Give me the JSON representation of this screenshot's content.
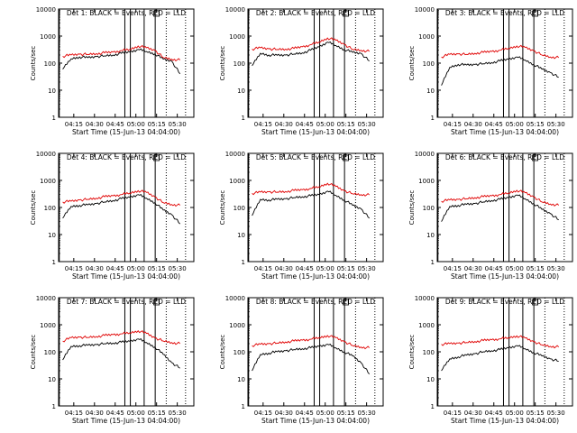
{
  "colors": {
    "events": "#000000",
    "lld": "#e00000",
    "frame": "#000000"
  },
  "chart_data": [
    {
      "type": "line",
      "title": "Det 1: BLACK = Events, RED = LLD",
      "ylabel": "Counts/sec",
      "xlabel": "Start Time (15-Jun-13 04:04:00)",
      "x_ticks": [
        "04:15",
        "04:30",
        "04:45",
        "05:00",
        "05:15",
        "05:30"
      ],
      "y_ticks": [
        "1",
        "10",
        "100",
        "1000",
        "10000"
      ],
      "ylim": [
        1,
        10000
      ],
      "yscale": "log",
      "series": [
        {
          "values": [
            60,
            145,
            170,
            160,
            175,
            185,
            200,
            230,
            260,
            320,
            270,
            220,
            140,
            120,
            40
          ]
        },
        {
          "values": [
            180,
            200,
            215,
            210,
            225,
            240,
            255,
            290,
            320,
            430,
            370,
            300,
            160,
            140,
            130
          ]
        }
      ]
    },
    {
      "type": "line",
      "title": "Det 2: BLACK = Events, RED = LLD",
      "ylabel": "Counts/sec",
      "xlabel": "Start Time (15-Jun-13 04:04:00)",
      "x_ticks": [
        "04:15",
        "04:30",
        "04:45",
        "05:00",
        "05:15",
        "05:30"
      ],
      "y_ticks": [
        "1",
        "10",
        "100",
        "1000",
        "10000"
      ],
      "ylim": [
        1,
        10000
      ],
      "yscale": "log",
      "series": [
        {
          "values": [
            80,
            230,
            200,
            195,
            200,
            215,
            240,
            300,
            400,
            600,
            450,
            320,
            250,
            230,
            120
          ]
        },
        {
          "values": [
            330,
            370,
            340,
            320,
            330,
            350,
            400,
            480,
            600,
            850,
            700,
            500,
            320,
            300,
            270
          ]
        }
      ]
    },
    {
      "type": "line",
      "title": "Det 3: BLACK = Events, RED = LLD",
      "ylabel": "Counts/sec",
      "xlabel": "Start Time (15-Jun-13 04:04:00)",
      "x_ticks": [
        "04:15",
        "04:30",
        "04:45",
        "05:00",
        "05:15",
        "05:30"
      ],
      "y_ticks": [
        "1",
        "10",
        "100",
        "1000",
        "10000"
      ],
      "ylim": [
        1,
        10000
      ],
      "yscale": "log",
      "series": [
        {
          "values": [
            15,
            70,
            90,
            85,
            90,
            95,
            105,
            120,
            140,
            170,
            130,
            90,
            60,
            45,
            30
          ]
        },
        {
          "values": [
            170,
            210,
            220,
            210,
            230,
            250,
            270,
            300,
            350,
            430,
            380,
            290,
            200,
            170,
            160
          ]
        }
      ]
    },
    {
      "type": "line",
      "title": "Det 4: BLACK = Events, RED = LLD",
      "ylabel": "Counts/sec",
      "xlabel": "Start Time (15-Jun-13 04:04:00)",
      "x_ticks": [
        "04:15",
        "04:30",
        "04:45",
        "05:00",
        "05:15",
        "05:30"
      ],
      "y_ticks": [
        "1",
        "10",
        "100",
        "1000",
        "10000"
      ],
      "ylim": [
        1,
        10000
      ],
      "yscale": "log",
      "series": [
        {
          "values": [
            40,
            110,
            120,
            125,
            140,
            160,
            180,
            210,
            240,
            300,
            220,
            150,
            80,
            55,
            25
          ]
        },
        {
          "values": [
            160,
            170,
            190,
            200,
            220,
            250,
            270,
            300,
            340,
            420,
            360,
            250,
            150,
            130,
            120
          ]
        }
      ]
    },
    {
      "type": "line",
      "title": "Det 5: BLACK = Events, RED = LLD",
      "ylabel": "Counts/sec",
      "xlabel": "Start Time (15-Jun-13 04:04:00)",
      "x_ticks": [
        "04:15",
        "04:30",
        "04:45",
        "05:00",
        "05:15",
        "05:30"
      ],
      "y_ticks": [
        "1",
        "10",
        "100",
        "1000",
        "10000"
      ],
      "ylim": [
        1,
        10000
      ],
      "yscale": "log",
      "series": [
        {
          "values": [
            50,
            200,
            190,
            200,
            210,
            230,
            250,
            270,
            300,
            400,
            280,
            190,
            120,
            90,
            40
          ]
        },
        {
          "values": [
            330,
            370,
            380,
            370,
            390,
            420,
            450,
            500,
            580,
            780,
            600,
            420,
            320,
            300,
            290
          ]
        }
      ]
    },
    {
      "type": "line",
      "title": "Det 6: BLACK = Events, RED = LLD",
      "ylabel": "Counts/sec",
      "xlabel": "Start Time (15-Jun-13 04:04:00)",
      "x_ticks": [
        "04:15",
        "04:30",
        "04:45",
        "05:00",
        "05:15",
        "05:30"
      ],
      "y_ticks": [
        "1",
        "10",
        "100",
        "1000",
        "10000"
      ],
      "ylim": [
        1,
        10000
      ],
      "yscale": "log",
      "series": [
        {
          "values": [
            30,
            110,
            120,
            130,
            140,
            160,
            180,
            200,
            230,
            290,
            210,
            140,
            85,
            60,
            35
          ]
        },
        {
          "values": [
            170,
            190,
            200,
            210,
            230,
            250,
            270,
            300,
            340,
            430,
            350,
            250,
            160,
            135,
            120
          ]
        }
      ]
    },
    {
      "type": "line",
      "title": "Det 7: BLACK = Events, RED = LLD",
      "ylabel": "Counts/sec",
      "xlabel": "Start Time (15-Jun-13 04:04:00)",
      "x_ticks": [
        "04:15",
        "04:30",
        "04:45",
        "05:00",
        "05:15",
        "05:30"
      ],
      "y_ticks": [
        "1",
        "10",
        "100",
        "1000",
        "10000"
      ],
      "ylim": [
        1,
        10000
      ],
      "yscale": "log",
      "series": [
        {
          "values": [
            50,
            160,
            170,
            175,
            185,
            200,
            210,
            225,
            245,
            300,
            220,
            150,
            80,
            40,
            25
          ]
        },
        {
          "values": [
            250,
            330,
            350,
            340,
            370,
            400,
            430,
            460,
            500,
            600,
            480,
            330,
            250,
            220,
            200
          ]
        }
      ]
    },
    {
      "type": "line",
      "title": "Det 8: BLACK = Events, RED = LLD",
      "ylabel": "Counts/sec",
      "xlabel": "Start Time (15-Jun-13 04:04:00)",
      "x_ticks": [
        "04:15",
        "04:30",
        "04:45",
        "05:00",
        "05:15",
        "05:30"
      ],
      "y_ticks": [
        "1",
        "10",
        "100",
        "1000",
        "10000"
      ],
      "ylim": [
        1,
        10000
      ],
      "yscale": "log",
      "series": [
        {
          "values": [
            20,
            80,
            90,
            100,
            110,
            120,
            130,
            140,
            160,
            190,
            140,
            100,
            70,
            40,
            15
          ]
        },
        {
          "values": [
            170,
            190,
            200,
            210,
            230,
            250,
            270,
            290,
            330,
            400,
            330,
            240,
            170,
            150,
            140
          ]
        }
      ]
    },
    {
      "type": "line",
      "title": "Det 9: BLACK = Events, RED = LLD",
      "ylabel": "Counts/sec",
      "xlabel": "Start Time (15-Jun-13 04:04:00)",
      "x_ticks": [
        "04:15",
        "04:30",
        "04:45",
        "05:00",
        "05:15",
        "05:30"
      ],
      "y_ticks": [
        "1",
        "10",
        "100",
        "1000",
        "10000"
      ],
      "ylim": [
        1,
        10000
      ],
      "yscale": "log",
      "series": [
        {
          "values": [
            20,
            55,
            65,
            75,
            85,
            100,
            110,
            120,
            140,
            170,
            130,
            95,
            70,
            55,
            45
          ]
        },
        {
          "values": [
            190,
            200,
            210,
            220,
            240,
            260,
            280,
            300,
            330,
            390,
            320,
            240,
            180,
            160,
            150
          ]
        }
      ]
    }
  ]
}
